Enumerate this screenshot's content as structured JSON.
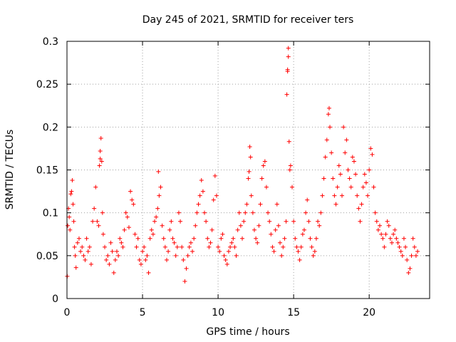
{
  "chart_data": {
    "type": "scatter",
    "title": "Day 245 of 2021, SRMTID for receiver ters",
    "xlabel": "GPS time / hours",
    "ylabel": "SRMTID / TECUs",
    "xlim": [
      0,
      24
    ],
    "ylim": [
      0,
      0.3
    ],
    "xticks": [
      0,
      5,
      10,
      15,
      20
    ],
    "xtick_labels": [
      "0",
      "5",
      "10",
      "15",
      "20"
    ],
    "yticks": [
      0,
      0.05,
      0.1,
      0.15,
      0.2,
      0.25,
      0.3
    ],
    "ytick_labels": [
      "0",
      "0.05",
      "0.1",
      "0.15",
      "0.2",
      "0.25",
      "0.3"
    ],
    "grid": true,
    "marker": "plus",
    "color": "#ff0000",
    "series": [
      {
        "name": "SRMTID",
        "points": [
          [
            0.02,
            0.026
          ],
          [
            0.05,
            0.085
          ],
          [
            0.1,
            0.105
          ],
          [
            0.15,
            0.095
          ],
          [
            0.2,
            0.08
          ],
          [
            0.25,
            0.122
          ],
          [
            0.3,
            0.125
          ],
          [
            0.35,
            0.138
          ],
          [
            0.4,
            0.11
          ],
          [
            0.45,
            0.09
          ],
          [
            0.5,
            0.06
          ],
          [
            0.55,
            0.05
          ],
          [
            0.6,
            0.036
          ],
          [
            0.7,
            0.065
          ],
          [
            0.8,
            0.07
          ],
          [
            0.9,
            0.055
          ],
          [
            1.0,
            0.06
          ],
          [
            1.1,
            0.05
          ],
          [
            1.2,
            0.045
          ],
          [
            1.3,
            0.07
          ],
          [
            1.4,
            0.055
          ],
          [
            1.5,
            0.06
          ],
          [
            1.6,
            0.04
          ],
          [
            1.7,
            0.09
          ],
          [
            1.8,
            0.105
          ],
          [
            1.9,
            0.13
          ],
          [
            2.0,
            0.09
          ],
          [
            2.1,
            0.085
          ],
          [
            2.15,
            0.155
          ],
          [
            2.2,
            0.163
          ],
          [
            2.2,
            0.172
          ],
          [
            2.25,
            0.187
          ],
          [
            2.3,
            0.16
          ],
          [
            2.35,
            0.1
          ],
          [
            2.4,
            0.075
          ],
          [
            2.5,
            0.06
          ],
          [
            2.6,
            0.045
          ],
          [
            2.7,
            0.05
          ],
          [
            2.8,
            0.04
          ],
          [
            2.9,
            0.065
          ],
          [
            3.0,
            0.055
          ],
          [
            3.1,
            0.03
          ],
          [
            3.2,
            0.045
          ],
          [
            3.3,
            0.055
          ],
          [
            3.4,
            0.05
          ],
          [
            3.5,
            0.07
          ],
          [
            3.6,
            0.065
          ],
          [
            3.7,
            0.06
          ],
          [
            3.8,
            0.08
          ],
          [
            3.9,
            0.1
          ],
          [
            4.0,
            0.095
          ],
          [
            4.1,
            0.083
          ],
          [
            4.2,
            0.125
          ],
          [
            4.3,
            0.115
          ],
          [
            4.4,
            0.11
          ],
          [
            4.5,
            0.075
          ],
          [
            4.6,
            0.06
          ],
          [
            4.7,
            0.07
          ],
          [
            4.8,
            0.045
          ],
          [
            4.9,
            0.04
          ],
          [
            5.0,
            0.055
          ],
          [
            5.1,
            0.06
          ],
          [
            5.2,
            0.045
          ],
          [
            5.3,
            0.05
          ],
          [
            5.4,
            0.03
          ],
          [
            5.5,
            0.07
          ],
          [
            5.6,
            0.08
          ],
          [
            5.7,
            0.075
          ],
          [
            5.8,
            0.09
          ],
          [
            5.9,
            0.095
          ],
          [
            6.0,
            0.105
          ],
          [
            6.05,
            0.148
          ],
          [
            6.1,
            0.12
          ],
          [
            6.2,
            0.13
          ],
          [
            6.3,
            0.085
          ],
          [
            6.4,
            0.07
          ],
          [
            6.5,
            0.06
          ],
          [
            6.6,
            0.045
          ],
          [
            6.7,
            0.055
          ],
          [
            6.8,
            0.08
          ],
          [
            6.9,
            0.09
          ],
          [
            7.0,
            0.07
          ],
          [
            7.1,
            0.065
          ],
          [
            7.2,
            0.05
          ],
          [
            7.3,
            0.06
          ],
          [
            7.4,
            0.1
          ],
          [
            7.5,
            0.09
          ],
          [
            7.6,
            0.06
          ],
          [
            7.7,
            0.045
          ],
          [
            7.8,
            0.02
          ],
          [
            7.9,
            0.035
          ],
          [
            8.0,
            0.05
          ],
          [
            8.1,
            0.06
          ],
          [
            8.2,
            0.065
          ],
          [
            8.3,
            0.055
          ],
          [
            8.4,
            0.07
          ],
          [
            8.5,
            0.085
          ],
          [
            8.6,
            0.1
          ],
          [
            8.7,
            0.11
          ],
          [
            8.8,
            0.12
          ],
          [
            8.9,
            0.138
          ],
          [
            9.0,
            0.125
          ],
          [
            9.1,
            0.1
          ],
          [
            9.2,
            0.09
          ],
          [
            9.3,
            0.07
          ],
          [
            9.4,
            0.06
          ],
          [
            9.5,
            0.065
          ],
          [
            9.6,
            0.08
          ],
          [
            9.7,
            0.115
          ],
          [
            9.8,
            0.143
          ],
          [
            9.9,
            0.12
          ],
          [
            10.0,
            0.06
          ],
          [
            10.1,
            0.055
          ],
          [
            10.2,
            0.07
          ],
          [
            10.3,
            0.075
          ],
          [
            10.4,
            0.05
          ],
          [
            10.5,
            0.045
          ],
          [
            10.6,
            0.04
          ],
          [
            10.7,
            0.055
          ],
          [
            10.8,
            0.06
          ],
          [
            10.9,
            0.065
          ],
          [
            11.0,
            0.07
          ],
          [
            11.1,
            0.06
          ],
          [
            11.2,
            0.05
          ],
          [
            11.3,
            0.08
          ],
          [
            11.4,
            0.1
          ],
          [
            11.5,
            0.085
          ],
          [
            11.6,
            0.07
          ],
          [
            11.7,
            0.09
          ],
          [
            11.8,
            0.1
          ],
          [
            11.9,
            0.11
          ],
          [
            12.0,
            0.14
          ],
          [
            12.05,
            0.148
          ],
          [
            12.1,
            0.177
          ],
          [
            12.15,
            0.165
          ],
          [
            12.2,
            0.12
          ],
          [
            12.3,
            0.1
          ],
          [
            12.4,
            0.08
          ],
          [
            12.5,
            0.07
          ],
          [
            12.6,
            0.065
          ],
          [
            12.7,
            0.085
          ],
          [
            12.8,
            0.11
          ],
          [
            12.9,
            0.14
          ],
          [
            13.0,
            0.155
          ],
          [
            13.1,
            0.16
          ],
          [
            13.2,
            0.13
          ],
          [
            13.3,
            0.1
          ],
          [
            13.4,
            0.09
          ],
          [
            13.5,
            0.075
          ],
          [
            13.6,
            0.06
          ],
          [
            13.7,
            0.055
          ],
          [
            13.8,
            0.08
          ],
          [
            13.9,
            0.11
          ],
          [
            14.0,
            0.085
          ],
          [
            14.1,
            0.065
          ],
          [
            14.2,
            0.05
          ],
          [
            14.3,
            0.06
          ],
          [
            14.4,
            0.07
          ],
          [
            14.5,
            0.09
          ],
          [
            14.55,
            0.238
          ],
          [
            14.6,
            0.265
          ],
          [
            14.6,
            0.267
          ],
          [
            14.65,
            0.282
          ],
          [
            14.65,
            0.292
          ],
          [
            14.7,
            0.183
          ],
          [
            14.75,
            0.15
          ],
          [
            14.8,
            0.155
          ],
          [
            14.9,
            0.13
          ],
          [
            15.0,
            0.09
          ],
          [
            15.1,
            0.07
          ],
          [
            15.2,
            0.06
          ],
          [
            15.3,
            0.055
          ],
          [
            15.4,
            0.045
          ],
          [
            15.5,
            0.06
          ],
          [
            15.6,
            0.075
          ],
          [
            15.7,
            0.08
          ],
          [
            15.8,
            0.1
          ],
          [
            15.9,
            0.115
          ],
          [
            16.0,
            0.09
          ],
          [
            16.1,
            0.07
          ],
          [
            16.2,
            0.06
          ],
          [
            16.3,
            0.05
          ],
          [
            16.4,
            0.055
          ],
          [
            16.5,
            0.07
          ],
          [
            16.6,
            0.09
          ],
          [
            16.7,
            0.085
          ],
          [
            16.8,
            0.1
          ],
          [
            16.9,
            0.12
          ],
          [
            17.0,
            0.14
          ],
          [
            17.1,
            0.165
          ],
          [
            17.2,
            0.185
          ],
          [
            17.3,
            0.215
          ],
          [
            17.35,
            0.222
          ],
          [
            17.4,
            0.2
          ],
          [
            17.5,
            0.17
          ],
          [
            17.6,
            0.14
          ],
          [
            17.7,
            0.12
          ],
          [
            17.8,
            0.11
          ],
          [
            17.9,
            0.13
          ],
          [
            18.0,
            0.155
          ],
          [
            18.1,
            0.145
          ],
          [
            18.2,
            0.12
          ],
          [
            18.3,
            0.2
          ],
          [
            18.4,
            0.17
          ],
          [
            18.5,
            0.185
          ],
          [
            18.6,
            0.15
          ],
          [
            18.7,
            0.14
          ],
          [
            18.8,
            0.13
          ],
          [
            18.9,
            0.165
          ],
          [
            19.0,
            0.16
          ],
          [
            19.1,
            0.145
          ],
          [
            19.2,
            0.12
          ],
          [
            19.3,
            0.105
          ],
          [
            19.4,
            0.09
          ],
          [
            19.5,
            0.11
          ],
          [
            19.6,
            0.13
          ],
          [
            19.7,
            0.145
          ],
          [
            19.8,
            0.135
          ],
          [
            19.9,
            0.12
          ],
          [
            20.0,
            0.15
          ],
          [
            20.1,
            0.175
          ],
          [
            20.2,
            0.168
          ],
          [
            20.3,
            0.13
          ],
          [
            20.4,
            0.1
          ],
          [
            20.5,
            0.09
          ],
          [
            20.6,
            0.08
          ],
          [
            20.7,
            0.085
          ],
          [
            20.8,
            0.075
          ],
          [
            20.9,
            0.07
          ],
          [
            21.0,
            0.06
          ],
          [
            21.1,
            0.075
          ],
          [
            21.2,
            0.09
          ],
          [
            21.3,
            0.085
          ],
          [
            21.4,
            0.07
          ],
          [
            21.5,
            0.065
          ],
          [
            21.6,
            0.075
          ],
          [
            21.7,
            0.08
          ],
          [
            21.8,
            0.07
          ],
          [
            21.9,
            0.065
          ],
          [
            22.0,
            0.06
          ],
          [
            22.1,
            0.055
          ],
          [
            22.2,
            0.05
          ],
          [
            22.3,
            0.07
          ],
          [
            22.4,
            0.06
          ],
          [
            22.5,
            0.045
          ],
          [
            22.6,
            0.03
          ],
          [
            22.7,
            0.035
          ],
          [
            22.8,
            0.05
          ],
          [
            22.9,
            0.07
          ],
          [
            23.0,
            0.06
          ],
          [
            23.1,
            0.05
          ],
          [
            23.2,
            0.055
          ]
        ]
      }
    ]
  }
}
